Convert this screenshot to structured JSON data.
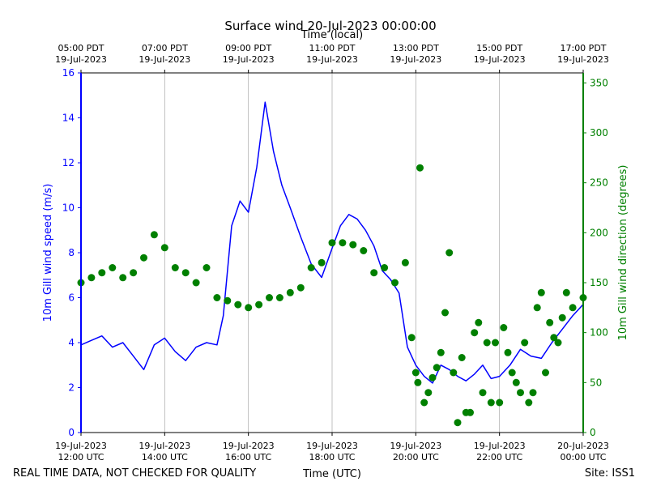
{
  "chart_data": {
    "type": "line",
    "title": "Surface wind 20-Jul-2023 00:00:00",
    "top_axis_label": "Time (local)",
    "xlabel": "Time (UTC)",
    "ylabel_left": "10m Gill wind speed (m/s)",
    "ylabel_right": "10m Gill wind direction (degrees)",
    "footer_left": "REAL TIME DATA, NOT CHECKED FOR QUALITY",
    "footer_right": "Site: ISS1",
    "x_range_hours_utc": [
      12,
      24
    ],
    "ylim_left": [
      0,
      16
    ],
    "ylim_right": [
      0,
      360
    ],
    "grid": "vertical",
    "bottom_ticks": [
      {
        "hour": 12,
        "line1": "19-Jul-2023",
        "line2": "12:00 UTC"
      },
      {
        "hour": 14,
        "line1": "19-Jul-2023",
        "line2": "14:00 UTC"
      },
      {
        "hour": 16,
        "line1": "19-Jul-2023",
        "line2": "16:00 UTC"
      },
      {
        "hour": 18,
        "line1": "19-Jul-2023",
        "line2": "18:00 UTC"
      },
      {
        "hour": 20,
        "line1": "19-Jul-2023",
        "line2": "20:00 UTC"
      },
      {
        "hour": 22,
        "line1": "19-Jul-2023",
        "line2": "22:00 UTC"
      },
      {
        "hour": 24,
        "line1": "20-Jul-2023",
        "line2": "00:00 UTC"
      }
    ],
    "top_ticks": [
      {
        "hour": 12,
        "line1": "05:00 PDT",
        "line2": "19-Jul-2023"
      },
      {
        "hour": 14,
        "line1": "07:00 PDT",
        "line2": "19-Jul-2023"
      },
      {
        "hour": 16,
        "line1": "09:00 PDT",
        "line2": "19-Jul-2023"
      },
      {
        "hour": 18,
        "line1": "11:00 PDT",
        "line2": "19-Jul-2023"
      },
      {
        "hour": 20,
        "line1": "13:00 PDT",
        "line2": "19-Jul-2023"
      },
      {
        "hour": 22,
        "line1": "15:00 PDT",
        "line2": "19-Jul-2023"
      },
      {
        "hour": 24,
        "line1": "17:00 PDT",
        "line2": "19-Jul-2023"
      }
    ],
    "left_ticks": [
      0,
      2,
      4,
      6,
      8,
      10,
      12,
      14,
      16
    ],
    "right_ticks": [
      0,
      50,
      100,
      150,
      200,
      250,
      300,
      350
    ],
    "series": [
      {
        "name": "10m Gill wind speed (m/s)",
        "axis": "left",
        "color": "#0000ff",
        "style": "line",
        "x": [
          12.0,
          12.25,
          12.5,
          12.75,
          13.0,
          13.25,
          13.5,
          13.75,
          14.0,
          14.25,
          14.5,
          14.75,
          15.0,
          15.25,
          15.4,
          15.6,
          15.8,
          16.0,
          16.2,
          16.4,
          16.6,
          16.8,
          17.0,
          17.25,
          17.5,
          17.75,
          18.0,
          18.2,
          18.4,
          18.6,
          18.8,
          19.0,
          19.2,
          19.4,
          19.6,
          19.8,
          20.0,
          20.2,
          20.4,
          20.6,
          20.8,
          21.0,
          21.2,
          21.4,
          21.6,
          21.8,
          22.0,
          22.25,
          22.5,
          22.75,
          23.0,
          23.25,
          23.5,
          23.75,
          24.0
        ],
        "y": [
          3.9,
          4.1,
          4.3,
          3.8,
          4.0,
          3.4,
          2.8,
          3.9,
          4.2,
          3.6,
          3.2,
          3.8,
          4.0,
          3.9,
          5.2,
          9.2,
          10.3,
          9.8,
          11.8,
          14.7,
          12.5,
          11.0,
          10.0,
          8.7,
          7.5,
          6.9,
          8.2,
          9.2,
          9.7,
          9.5,
          9.0,
          8.3,
          7.2,
          6.8,
          6.2,
          3.8,
          3.0,
          2.5,
          2.2,
          3.0,
          2.8,
          2.5,
          2.3,
          2.6,
          3.0,
          2.4,
          2.5,
          3.0,
          3.7,
          3.4,
          3.3,
          4.0,
          4.6,
          5.2,
          5.7
        ]
      },
      {
        "name": "10m Gill wind direction (degrees)",
        "axis": "right",
        "color": "#008000",
        "style": "markers",
        "x": [
          12.0,
          12.25,
          12.5,
          12.75,
          13.0,
          13.25,
          13.5,
          13.75,
          14.0,
          14.25,
          14.5,
          14.75,
          15.0,
          15.25,
          15.5,
          15.75,
          16.0,
          16.25,
          16.5,
          16.75,
          17.0,
          17.25,
          17.5,
          17.75,
          18.0,
          18.25,
          18.5,
          18.75,
          19.0,
          19.25,
          19.5,
          19.75,
          19.9,
          20.0,
          20.05,
          20.1,
          20.2,
          20.3,
          20.4,
          20.5,
          20.6,
          20.7,
          20.8,
          20.9,
          21.0,
          21.1,
          21.2,
          21.3,
          21.4,
          21.5,
          21.6,
          21.7,
          21.8,
          21.9,
          22.0,
          22.1,
          22.2,
          22.3,
          22.4,
          22.5,
          22.6,
          22.7,
          22.8,
          22.9,
          23.0,
          23.1,
          23.2,
          23.3,
          23.4,
          23.5,
          23.6,
          23.75,
          24.0
        ],
        "y": [
          150,
          155,
          160,
          165,
          155,
          160,
          175,
          198,
          185,
          165,
          160,
          150,
          165,
          135,
          132,
          128,
          125,
          128,
          135,
          135,
          140,
          145,
          165,
          170,
          190,
          190,
          188,
          182,
          160,
          165,
          150,
          170,
          95,
          60,
          50,
          265,
          30,
          40,
          55,
          65,
          80,
          120,
          180,
          60,
          10,
          75,
          20,
          20,
          100,
          110,
          40,
          90,
          30,
          90,
          30,
          105,
          80,
          60,
          50,
          40,
          90,
          30,
          40,
          125,
          140,
          60,
          110,
          95,
          90,
          115,
          140,
          125,
          135
        ]
      }
    ]
  }
}
